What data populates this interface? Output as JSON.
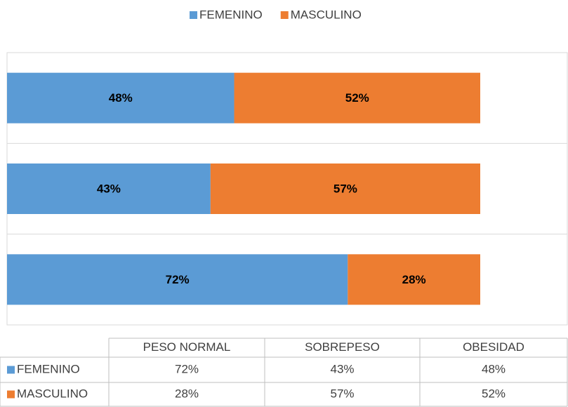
{
  "chart_data": {
    "type": "stacked_barh",
    "categories": [
      "PESO NORMAL",
      "SOBREPESO",
      "OBESIDAD"
    ],
    "series": [
      {
        "name": "FEMENINO",
        "color": "#5b9bd5",
        "values": [
          72,
          43,
          48
        ],
        "value_labels": [
          "72%",
          "43%",
          "48%"
        ]
      },
      {
        "name": "MASCULINO",
        "color": "#ed7d31",
        "values": [
          28,
          57,
          52
        ],
        "value_labels": [
          "28%",
          "57%",
          "52%"
        ]
      }
    ],
    "xlim": [
      0,
      100
    ],
    "legend": "top",
    "data_table": true
  }
}
